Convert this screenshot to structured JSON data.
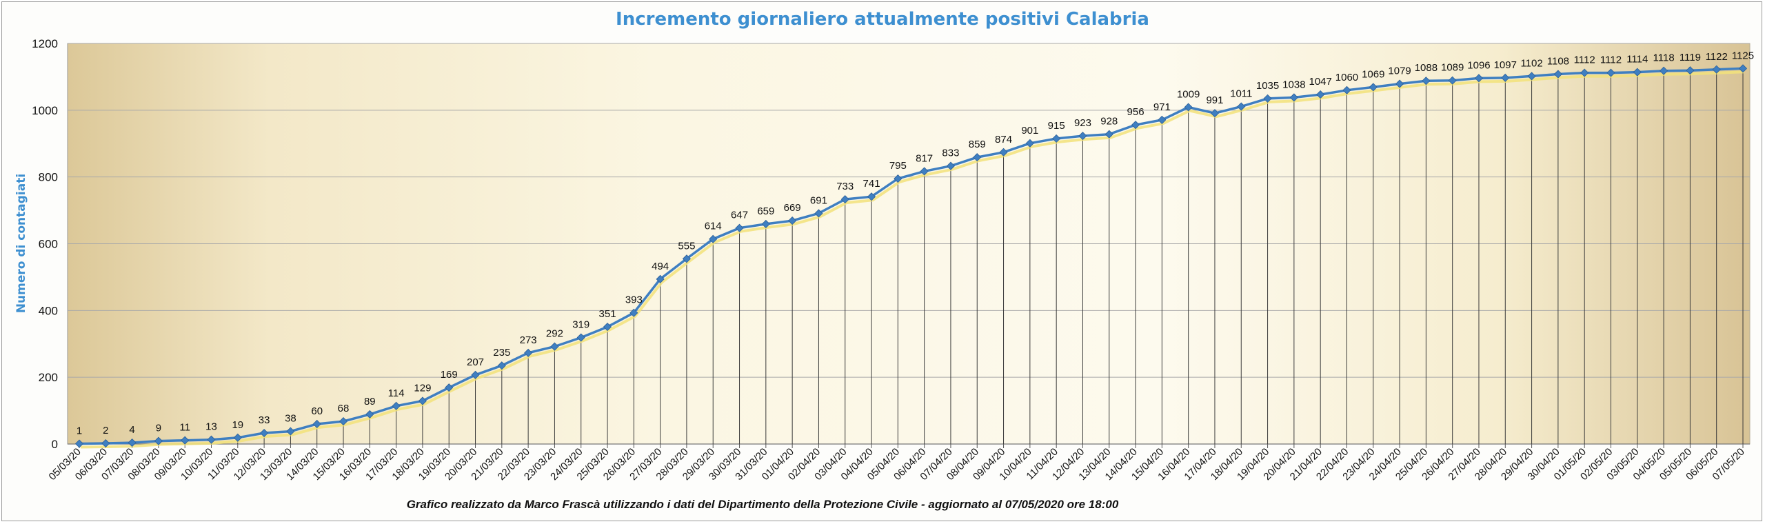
{
  "chart_data": {
    "type": "line",
    "title": "Incremento giornaliero attualmente positivi Calabria",
    "ylabel": "Numero di contagiati",
    "xlabel": "",
    "ylim": [
      0,
      1200
    ],
    "yticks": [
      0,
      200,
      400,
      600,
      800,
      1000,
      1200
    ],
    "grid": true,
    "categories": [
      "05/03/20",
      "06/03/20",
      "07/03/20",
      "08/03/20",
      "09/03/20",
      "10/03/20",
      "11/03/20",
      "12/03/20",
      "13/03/20",
      "14/03/20",
      "15/03/20",
      "16/03/20",
      "17/03/20",
      "18/03/20",
      "19/03/20",
      "20/03/20",
      "21/03/20",
      "22/03/20",
      "23/03/20",
      "24/03/20",
      "25/03/20",
      "26/03/20",
      "27/03/20",
      "28/03/20",
      "29/03/20",
      "30/03/20",
      "31/03/20",
      "01/04/20",
      "02/04/20",
      "03/04/20",
      "04/04/20",
      "05/04/20",
      "06/04/20",
      "07/04/20",
      "08/04/20",
      "09/04/20",
      "10/04/20",
      "11/04/20",
      "12/04/20",
      "13/04/20",
      "14/04/20",
      "15/04/20",
      "16/04/20",
      "17/04/20",
      "18/04/20",
      "19/04/20",
      "20/04/20",
      "21/04/20",
      "22/04/20",
      "23/04/20",
      "24/04/20",
      "25/04/20",
      "26/04/20",
      "27/04/20",
      "28/04/20",
      "29/04/20",
      "30/04/20",
      "01/05/20",
      "02/05/20",
      "03/05/20",
      "04/05/20",
      "05/05/20",
      "06/05/20",
      "07/05/20"
    ],
    "values": [
      1,
      2,
      4,
      9,
      11,
      13,
      19,
      33,
      38,
      60,
      68,
      89,
      114,
      129,
      169,
      207,
      235,
      273,
      292,
      319,
      351,
      393,
      494,
      555,
      614,
      647,
      659,
      669,
      691,
      733,
      741,
      795,
      817,
      833,
      859,
      874,
      901,
      915,
      923,
      928,
      956,
      971,
      1009,
      991,
      1011,
      1035,
      1038,
      1047,
      1060,
      1069,
      1079,
      1088,
      1089,
      1096,
      1097,
      1102,
      1108,
      1112,
      1112,
      1114,
      1118,
      1119,
      1122,
      1125
    ],
    "line_color": "#3f7fc1",
    "marker_color": "#3f7fc1",
    "shadow_color": "#f2e27a"
  },
  "footer": "Grafico  realizzato da Marco Frascà  utilizzando i dati del Dipartimento  della Protezione Civile  - aggiornato al 07/05/2020 ore 18:00"
}
